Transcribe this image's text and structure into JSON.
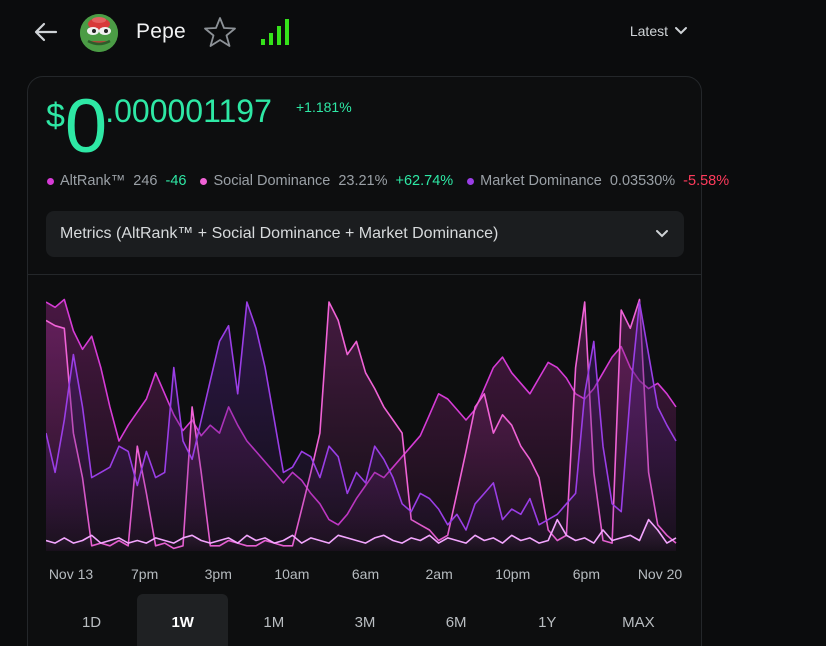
{
  "header": {
    "coin_name": "Pepe",
    "time_range_label": "Latest",
    "icons": [
      "back-arrow-icon",
      "pepe-logo",
      "star-icon",
      "signal-bars-icon",
      "chevron-down-icon"
    ],
    "signal_color": "#35e21a"
  },
  "price": {
    "currency": "$",
    "integer": "0",
    "decimals": ".000001197",
    "change": "+1.181%"
  },
  "metrics": [
    {
      "label": "AltRank™",
      "value": "246",
      "change": "-46",
      "dot_color": "#d63bd6",
      "change_positive": true
    },
    {
      "label": "Social Dominance",
      "value": "23.21%",
      "change": "+62.74%",
      "dot_color": "#f062d6",
      "change_positive": true
    },
    {
      "label": "Market Dominance",
      "value": "0.03530%",
      "change": "-5.58%",
      "dot_color": "#9a3ee6",
      "change_positive": false
    }
  ],
  "metrics_dropdown": {
    "label": "Metrics  (AltRank™ + Social Dominance + Market Dominance)"
  },
  "chart_data": {
    "type": "area",
    "x_tick_labels": [
      "Nov 13",
      "7pm",
      "3pm",
      "10am",
      "6am",
      "2am",
      "10pm",
      "6pm",
      "Nov 20"
    ],
    "ylim": [
      0,
      100
    ],
    "grid": false,
    "legend": "none",
    "series": [
      {
        "name": "AltRank™",
        "color": "#d63bd6",
        "values": [
          95,
          93,
          96,
          84,
          77,
          82,
          70,
          55,
          42,
          48,
          53,
          58,
          68,
          60,
          52,
          46,
          50,
          44,
          48,
          45,
          55,
          48,
          42,
          38,
          34,
          30,
          26,
          30,
          27,
          22,
          18,
          12,
          10,
          14,
          20,
          25,
          30,
          28,
          32,
          36,
          40,
          44,
          52,
          60,
          58,
          54,
          50,
          54,
          62,
          70,
          74,
          68,
          64,
          60,
          66,
          72,
          70,
          66,
          60,
          58,
          62,
          68,
          74,
          78,
          70,
          65,
          62,
          64,
          60,
          55
        ]
      },
      {
        "name": "Social Dominance",
        "color": "#f062d6",
        "values": [
          88,
          86,
          85,
          45,
          28,
          2,
          3,
          2,
          4,
          2,
          40,
          22,
          2,
          3,
          1,
          2,
          55,
          30,
          2,
          2,
          4,
          3,
          2,
          2,
          4,
          3,
          2,
          2,
          16,
          30,
          45,
          95,
          88,
          75,
          80,
          68,
          62,
          55,
          50,
          45,
          12,
          10,
          8,
          4,
          6,
          22,
          38,
          55,
          60,
          45,
          52,
          48,
          40,
          35,
          28,
          8,
          4,
          6,
          70,
          95,
          30,
          4,
          3,
          92,
          85,
          96,
          30,
          10,
          6,
          3
        ]
      },
      {
        "name": "Market Dominance",
        "color": "#9a3ee6",
        "values": [
          45,
          30,
          50,
          75,
          55,
          28,
          30,
          32,
          40,
          38,
          25,
          38,
          28,
          30,
          70,
          42,
          35,
          50,
          65,
          80,
          86,
          60,
          95,
          85,
          70,
          50,
          30,
          32,
          38,
          36,
          28,
          40,
          36,
          22,
          30,
          26,
          40,
          35,
          28,
          18,
          15,
          22,
          20,
          16,
          10,
          14,
          8,
          18,
          22,
          26,
          12,
          16,
          14,
          20,
          10,
          12,
          14,
          18,
          22,
          60,
          80,
          40,
          18,
          15,
          60,
          95,
          75,
          55,
          48,
          42
        ]
      },
      {
        "name": "",
        "color": "#f4a6ff",
        "values": [
          4,
          3,
          5,
          3,
          4,
          6,
          3,
          4,
          5,
          3,
          4,
          3,
          5,
          4,
          3,
          5,
          6,
          4,
          3,
          4,
          5,
          3,
          6,
          4,
          5,
          3,
          4,
          6,
          3,
          5,
          4,
          3,
          6,
          5,
          4,
          3,
          5,
          6,
          4,
          3,
          5,
          4,
          6,
          3,
          5,
          4,
          3,
          6,
          4,
          5,
          3,
          6,
          4,
          5,
          3,
          4,
          12,
          6,
          4,
          5,
          3,
          8,
          4,
          5,
          6,
          4,
          12,
          8,
          3,
          5
        ]
      }
    ]
  },
  "range_tabs": {
    "items": [
      "1D",
      "1W",
      "1M",
      "3M",
      "6M",
      "1Y",
      "MAX"
    ],
    "active": "1W"
  }
}
